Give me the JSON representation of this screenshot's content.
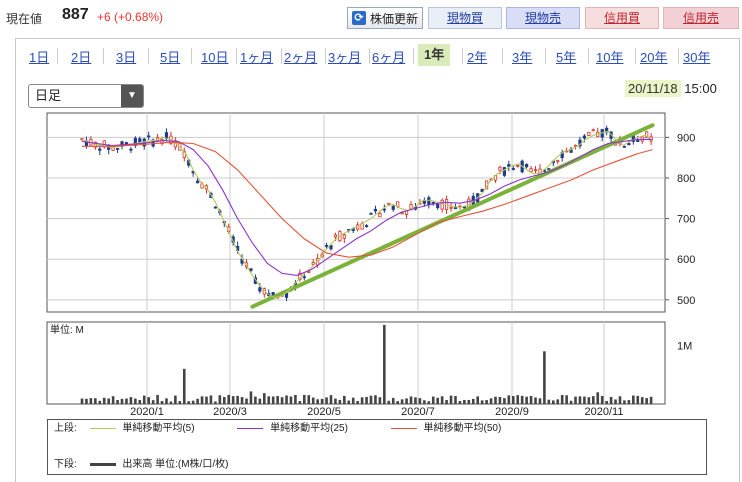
{
  "header": {
    "price_label": "現在値",
    "price": "887",
    "change": "+6 (+0.68%)",
    "refresh_label": "株価更新",
    "buttons": [
      "現物買",
      "現物売",
      "信用買",
      "信用売"
    ]
  },
  "periods": [
    "1日",
    "2日",
    "3日",
    "5日",
    "10日",
    "1ヶ月",
    "2ヶ月",
    "3ヶ月",
    "6ヶ月",
    "1年",
    "2年",
    "3年",
    "5年",
    "10年",
    "20年",
    "30年"
  ],
  "active_period": "1年",
  "interval_select": "日足",
  "timestamp": {
    "date": "20/11/18",
    "time": "15:00"
  },
  "colors": {
    "ma5": "#b5c95b",
    "ma25": "#8b34c8",
    "ma50": "#e2553a",
    "trend": "#7bb23a",
    "up": "#d9302a",
    "down": "#1f3a8a",
    "volume": "#444444"
  },
  "chart_data": [
    {
      "type": "candlestick",
      "y_ticks": [
        "900",
        "800",
        "700",
        "600",
        "500"
      ],
      "ylim": [
        470,
        960
      ],
      "x_ticks": [
        "2020/1",
        "2020/3",
        "2020/5",
        "2020/7",
        "2020/9",
        "2020/11"
      ],
      "series": [
        {
          "name": "単純移動平均(5)",
          "points": [
            [
              0,
              895
            ],
            [
              10,
              882
            ],
            [
              20,
              875
            ],
            [
              30,
              880
            ],
            [
              40,
              888
            ],
            [
              50,
              893
            ],
            [
              55,
              900
            ],
            [
              60,
              895
            ],
            [
              65,
              880
            ],
            [
              70,
              860
            ],
            [
              75,
              820
            ],
            [
              80,
              790
            ],
            [
              85,
              770
            ],
            [
              90,
              740
            ],
            [
              95,
              700
            ],
            [
              100,
              660
            ],
            [
              105,
              620
            ],
            [
              110,
              590
            ],
            [
              115,
              560
            ],
            [
              120,
              535
            ],
            [
              125,
              515
            ],
            [
              130,
              505
            ],
            [
              135,
              510
            ],
            [
              140,
              525
            ],
            [
              145,
              545
            ],
            [
              150,
              565
            ],
            [
              155,
              580
            ],
            [
              160,
              600
            ],
            [
              165,
              625
            ],
            [
              170,
              645
            ],
            [
              175,
              660
            ],
            [
              180,
              670
            ],
            [
              185,
              680
            ],
            [
              190,
              690
            ],
            [
              195,
              700
            ],
            [
              200,
              715
            ],
            [
              205,
              730
            ],
            [
              210,
              735
            ],
            [
              215,
              725
            ],
            [
              220,
              720
            ],
            [
              225,
              730
            ],
            [
              230,
              745
            ],
            [
              235,
              745
            ],
            [
              240,
              740
            ],
            [
              245,
              735
            ],
            [
              250,
              730
            ],
            [
              255,
              728
            ],
            [
              260,
              732
            ],
            [
              265,
              745
            ],
            [
              270,
              762
            ],
            [
              275,
              790
            ],
            [
              280,
              810
            ],
            [
              285,
              820
            ],
            [
              290,
              830
            ],
            [
              295,
              835
            ],
            [
              300,
              820
            ],
            [
              305,
              810
            ],
            [
              310,
              815
            ],
            [
              315,
              830
            ],
            [
              320,
              850
            ],
            [
              325,
              865
            ],
            [
              330,
              870
            ],
            [
              335,
              880
            ],
            [
              340,
              895
            ],
            [
              345,
              905
            ],
            [
              350,
              910
            ],
            [
              355,
              915
            ],
            [
              360,
              895
            ],
            [
              365,
              880
            ],
            [
              370,
              890
            ],
            [
              375,
              900
            ],
            [
              380,
              905
            ],
            [
              385,
              890
            ]
          ]
        },
        {
          "name": "単純移動平均(25)",
          "points": [
            [
              0,
              890
            ],
            [
              20,
              880
            ],
            [
              40,
              885
            ],
            [
              55,
              892
            ],
            [
              65,
              890
            ],
            [
              75,
              870
            ],
            [
              85,
              830
            ],
            [
              95,
              770
            ],
            [
              105,
              700
            ],
            [
              115,
              640
            ],
            [
              125,
              590
            ],
            [
              135,
              565
            ],
            [
              145,
              560
            ],
            [
              155,
              575
            ],
            [
              165,
              600
            ],
            [
              175,
              625
            ],
            [
              185,
              650
            ],
            [
              195,
              670
            ],
            [
              205,
              695
            ],
            [
              215,
              715
            ],
            [
              225,
              725
            ],
            [
              235,
              735
            ],
            [
              245,
              740
            ],
            [
              255,
              738
            ],
            [
              265,
              745
            ],
            [
              275,
              760
            ],
            [
              285,
              780
            ],
            [
              295,
              795
            ],
            [
              305,
              805
            ],
            [
              315,
              815
            ],
            [
              325,
              830
            ],
            [
              335,
              850
            ],
            [
              345,
              870
            ],
            [
              355,
              885
            ],
            [
              365,
              890
            ],
            [
              375,
              895
            ],
            [
              385,
              895
            ]
          ]
        },
        {
          "name": "単純移動平均(50)",
          "points": [
            [
              0,
              878
            ],
            [
              20,
              878
            ],
            [
              40,
              882
            ],
            [
              60,
              888
            ],
            [
              75,
              885
            ],
            [
              90,
              865
            ],
            [
              105,
              820
            ],
            [
              120,
              760
            ],
            [
              135,
              700
            ],
            [
              150,
              650
            ],
            [
              165,
              615
            ],
            [
              180,
              605
            ],
            [
              195,
              610
            ],
            [
              210,
              630
            ],
            [
              225,
              660
            ],
            [
              240,
              690
            ],
            [
              255,
              705
            ],
            [
              270,
              718
            ],
            [
              285,
              735
            ],
            [
              300,
              755
            ],
            [
              315,
              775
            ],
            [
              330,
              795
            ],
            [
              345,
              820
            ],
            [
              360,
              840
            ],
            [
              375,
              860
            ],
            [
              385,
              870
            ]
          ]
        }
      ],
      "trendline": {
        "name": "trendline",
        "points": [
          [
            115,
            483
          ],
          [
            385,
            930
          ]
        ]
      }
    },
    {
      "type": "bar",
      "title": "単位: M",
      "y_ticks": [
        "1M"
      ],
      "ylim": [
        0,
        1.4
      ],
      "spikes": [
        [
          70,
          0.6
        ],
        [
          203,
          1.35
        ],
        [
          311,
          0.9
        ],
        [
          349,
          0.2
        ]
      ]
    }
  ],
  "legend": {
    "upper_label": "上段:",
    "lower_label": "下段:",
    "items": [
      "単純移動平均(5)",
      "単純移動平均(25)",
      "単純移動平均(50)"
    ],
    "volume_label": "出来高 単位:(M株/口/枚)"
  }
}
